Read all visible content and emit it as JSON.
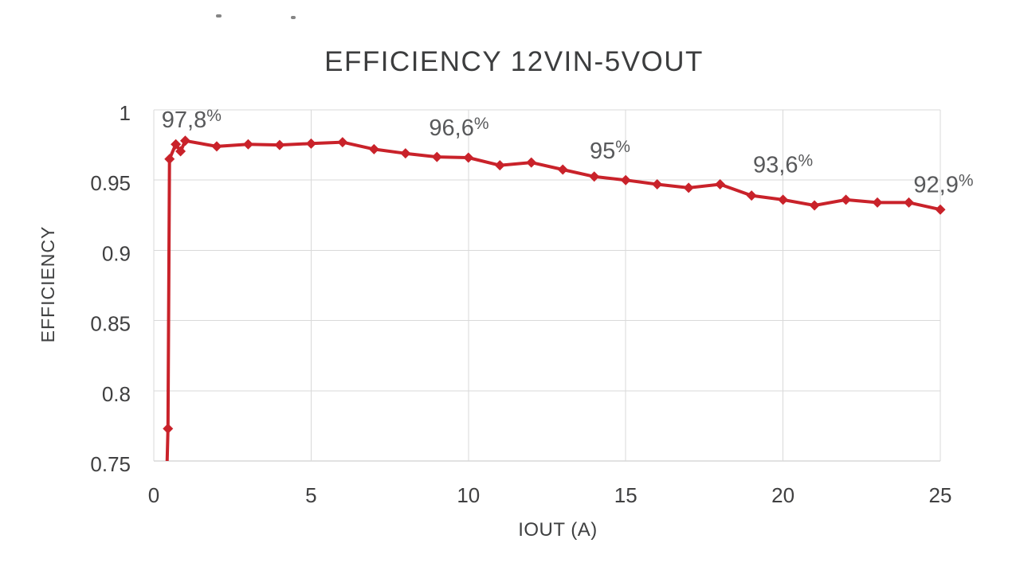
{
  "chart_data": {
    "type": "line",
    "title": "EFFICIENCY 12VIN-5VOUT",
    "xlabel": "IOUT (A)",
    "ylabel": "EFFICIENCY",
    "xlim": [
      0,
      25
    ],
    "ylim": [
      0.75,
      1.0
    ],
    "grid": true,
    "legend": "none",
    "x_ticks": {
      "values": [
        0,
        5,
        10,
        15,
        20,
        25
      ],
      "labels": [
        "0",
        "5",
        "10",
        "15",
        "20",
        "25"
      ]
    },
    "y_ticks": {
      "values": [
        1,
        0.95,
        0.9,
        0.85,
        0.8,
        0.75
      ],
      "labels": [
        "1",
        "0.95",
        "0.9",
        "0.85",
        "0.8",
        "0.75"
      ]
    },
    "series": [
      {
        "name": "EFFICIENCY 12VIN-5VOUT",
        "color": "#c9222a",
        "marker": "diamond",
        "x": [
          0.42,
          0.45,
          0.5,
          0.7,
          0.85,
          1,
          2,
          3,
          4,
          5,
          6,
          7,
          8,
          9,
          10,
          11,
          12,
          13,
          14,
          15,
          16,
          17,
          18,
          19,
          20,
          21,
          22,
          23,
          24,
          25
        ],
        "y": [
          0.747,
          0.773,
          0.965,
          0.9755,
          0.9705,
          0.978,
          0.974,
          0.9755,
          0.975,
          0.976,
          0.977,
          0.972,
          0.969,
          0.9665,
          0.966,
          0.9605,
          0.9625,
          0.9575,
          0.9525,
          0.95,
          0.947,
          0.9445,
          0.947,
          0.939,
          0.936,
          0.932,
          0.936,
          0.934,
          0.934,
          0.929
        ]
      }
    ],
    "data_labels": [
      {
        "text": "97,8%",
        "x": 1.2,
        "y": 0.9925
      },
      {
        "text": "96,6%",
        "x": 9.7,
        "y": 0.987
      },
      {
        "text": "95%",
        "x": 14.5,
        "y": 0.9705
      },
      {
        "text": "93,6%",
        "x": 20.0,
        "y": 0.9605
      },
      {
        "text": "92,9%",
        "x": 25.1,
        "y": 0.9465
      }
    ],
    "colors": {
      "grid": "#d9d9d9",
      "axis": "#c4c4c4",
      "tick_text": "#404041",
      "label_text": "#58595b",
      "title_text": "#3c3d3e"
    }
  }
}
